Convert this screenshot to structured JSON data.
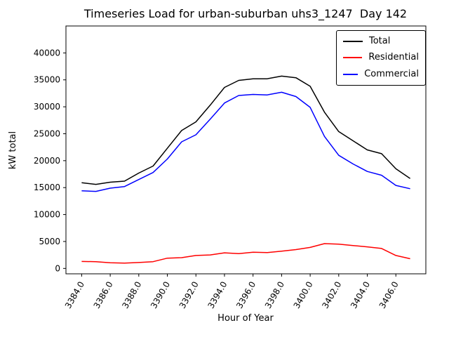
{
  "chart_data": {
    "type": "line",
    "title": "Timeseries Load for urban-suburban uhs3_1247  Day 142",
    "xlabel": "Hour of Year",
    "ylabel": "kW total",
    "grid": false,
    "legend_position": "upper right",
    "xlim": [
      3382.9,
      3408.1
    ],
    "ylim": [
      -1000,
      45000
    ],
    "xticks": [
      3384,
      3386,
      3388,
      3390,
      3392,
      3394,
      3396,
      3398,
      3400,
      3402,
      3404,
      3406
    ],
    "xtick_labels": [
      "3384.0",
      "3386.0",
      "3388.0",
      "3390.0",
      "3392.0",
      "3394.0",
      "3396.0",
      "3398.0",
      "3400.0",
      "3402.0",
      "3404.0",
      "3406.0"
    ],
    "yticks": [
      0,
      5000,
      10000,
      15000,
      20000,
      25000,
      30000,
      35000,
      40000
    ],
    "ytick_labels": [
      "0",
      "5000",
      "10000",
      "15000",
      "20000",
      "25000",
      "30000",
      "35000",
      "40000"
    ],
    "x": [
      3384,
      3385,
      3386,
      3387,
      3388,
      3389,
      3390,
      3391,
      3392,
      3393,
      3394,
      3395,
      3396,
      3397,
      3398,
      3399,
      3400,
      3401,
      3402,
      3403,
      3404,
      3405,
      3406,
      3407
    ],
    "series": [
      {
        "name": "Total",
        "color": "#000000",
        "values": [
          15900,
          15600,
          16000,
          16200,
          17700,
          19000,
          22300,
          25600,
          27200,
          30300,
          33600,
          34900,
          35200,
          35200,
          35700,
          35400,
          33800,
          29000,
          25400,
          23700,
          22000,
          21300,
          18500,
          16700
        ]
      },
      {
        "name": "Residential",
        "color": "#ff0000",
        "values": [
          1300,
          1250,
          1050,
          1000,
          1100,
          1250,
          1900,
          2000,
          2400,
          2500,
          2900,
          2750,
          3000,
          2950,
          3200,
          3500,
          3900,
          4600,
          4500,
          4250,
          4000,
          3700,
          2400,
          1800
        ]
      },
      {
        "name": "Commercial",
        "color": "#0000ff",
        "values": [
          14400,
          14300,
          14900,
          15200,
          16500,
          17800,
          20300,
          23500,
          24800,
          27700,
          30700,
          32100,
          32300,
          32200,
          32700,
          31900,
          29900,
          24500,
          21000,
          19400,
          18000,
          17300,
          15400,
          14800
        ]
      }
    ]
  }
}
